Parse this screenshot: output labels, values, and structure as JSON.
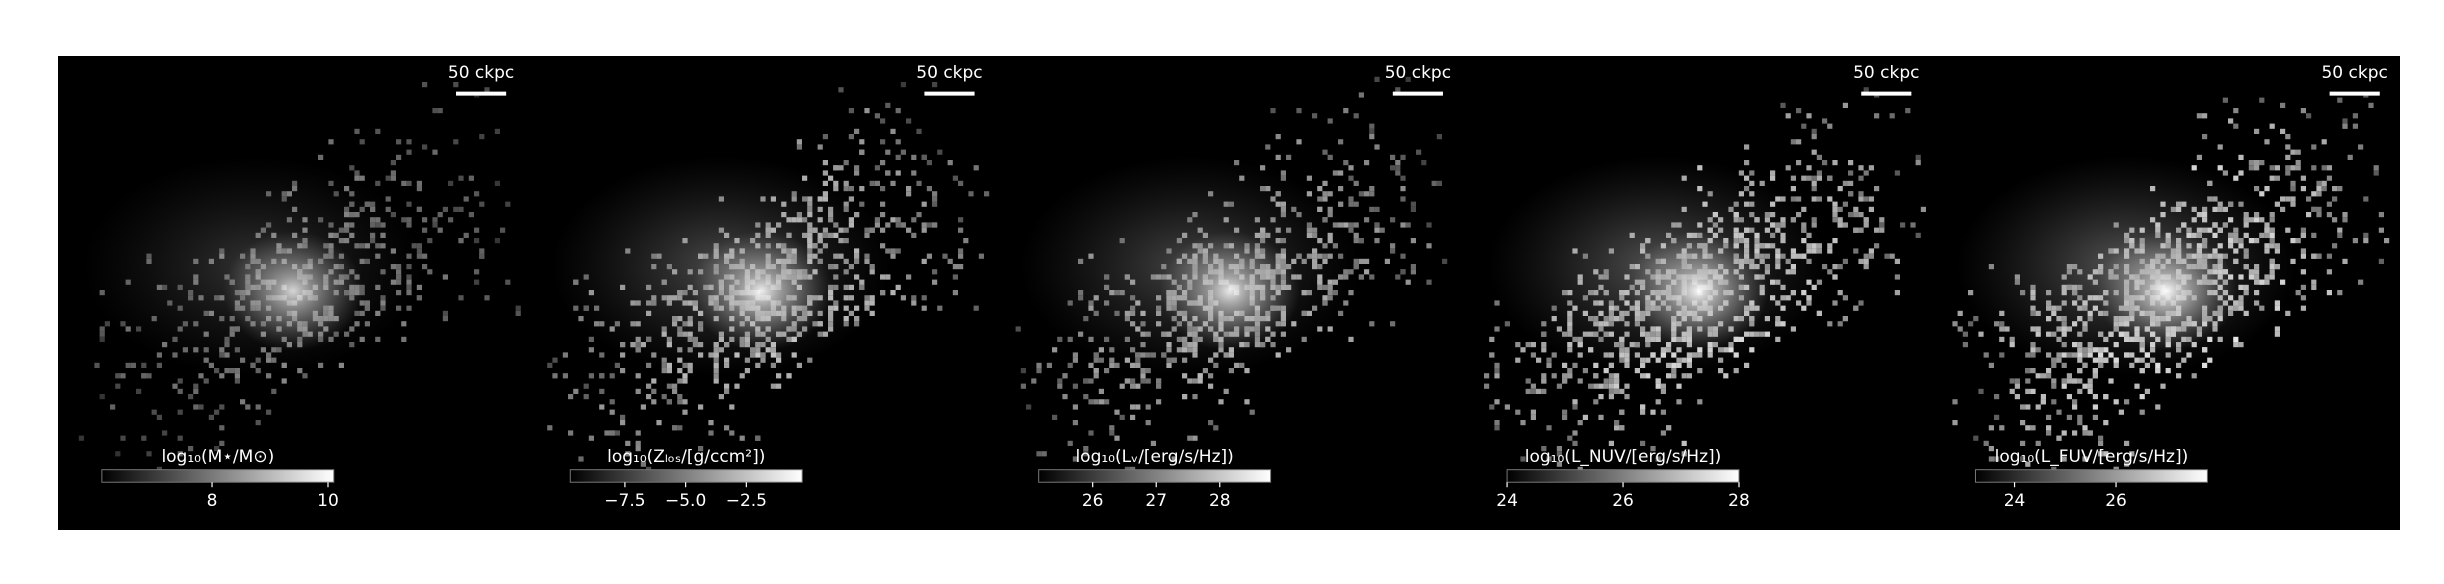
{
  "chart_data": [
    {
      "type": "image",
      "cmap": "gray",
      "scalebar": "50 ckpc",
      "colorbar_label": "log₁₀(M⋆/M⊙)",
      "clim": [
        6.1,
        10.1
      ],
      "cticks": [
        8,
        10
      ],
      "brightness": 0.55
    },
    {
      "type": "image",
      "cmap": "gray",
      "scalebar": "50 ckpc",
      "colorbar_label": "log₁₀(Zₗₒₛ/[g/ccm²])",
      "clim": [
        -9.75,
        -0.2
      ],
      "cticks": [
        {
          "value": -7.5,
          "label": "−7.5"
        },
        {
          "value": -5.0,
          "label": "−5.0"
        },
        {
          "value": -2.5,
          "label": "−2.5"
        }
      ],
      "brightness": 0.8
    },
    {
      "type": "image",
      "cmap": "gray",
      "scalebar": "50 ckpc",
      "colorbar_label": "log₁₀(Lᵥ/[erg/s/Hz])",
      "clim": [
        25.15,
        28.8
      ],
      "cticks": [
        26,
        27,
        28
      ],
      "brightness": 0.75
    },
    {
      "type": "image",
      "cmap": "gray",
      "scalebar": "50 ckpc",
      "colorbar_label": "log₁₀(L_NUV/[erg/s/Hz])",
      "clim": [
        24,
        28
      ],
      "cticks": [
        24,
        26,
        28
      ],
      "brightness": 0.9
    },
    {
      "type": "image",
      "cmap": "gray",
      "scalebar": "50 ckpc",
      "colorbar_label": "log₁₀(L_FUV/[erg/s/Hz])",
      "clim": [
        23.23,
        27.8
      ],
      "cticks": [
        24,
        26
      ],
      "brightness": 0.95
    }
  ]
}
